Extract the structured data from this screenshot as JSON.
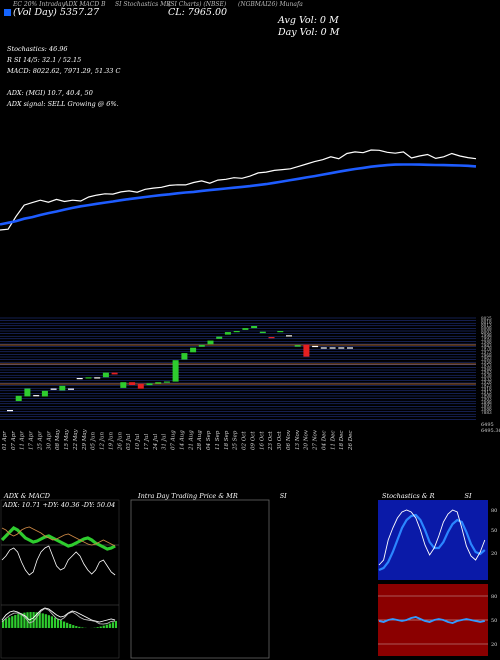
{
  "header": {
    "tab1": "EC 20% Intraday",
    "tab2": "ADX MACD B",
    "tab3": "SI Stochastics MR",
    "tab4": "(SI Charts) (NBSE)",
    "tab5": "(NGBMAI26) Munafa",
    "line2a": "(Vol",
    "line2b": "Day)",
    "line2c": "5357.27",
    "close_text": "CL: 7965.00",
    "avg_vol": "Avg Vol: 0   M",
    "day_vol": "Day Vol: 0   M"
  },
  "stats": [
    "Stochastics: 46.96",
    "R          SI 14/5: 32.1 / 52.15",
    "MACD: 8022.62, 7971.29, 51.33 C",
    "",
    "ADX:                  (MGI) 10.7, 40.4,  50",
    "ADX  signal: SELL Growing @ 6%."
  ],
  "colors": {
    "price_line": "#ffffff",
    "ma_line": "#1e5cff",
    "up_candle": "#2ecc2e",
    "down_candle": "#e32020",
    "bg": "#000000",
    "grid_blue": "#2a3f9e",
    "grid_orange": "#d27b2e",
    "rsi_panel": "#8b0000"
  },
  "chart_data": [
    {
      "type": "line",
      "title": "",
      "series": [
        {
          "values": [
            7535,
            7540,
            7620,
            7690,
            7705,
            7720,
            7708,
            7725,
            7712,
            7720,
            7715,
            7740,
            7752,
            7760,
            7758,
            7772,
            7778,
            7770,
            7788,
            7795,
            7800,
            7812,
            7816,
            7815,
            7830,
            7840,
            7826,
            7845,
            7850,
            7860,
            7856,
            7870,
            7890,
            7895,
            7905,
            7910,
            7915,
            7930,
            7945,
            7960,
            7972,
            7990,
            7978,
            8010,
            8020,
            8015,
            8032,
            8030,
            8018,
            8012,
            8020,
            7982,
            7995,
            8004,
            7980,
            7990,
            8010,
            7995,
            7985,
            7978
          ]
        },
        {
          "values": [
            7570,
            7580,
            7590,
            7605,
            7615,
            7628,
            7640,
            7650,
            7662,
            7672,
            7682,
            7690,
            7698,
            7705,
            7712,
            7720,
            7727,
            7733,
            7740,
            7746,
            7752,
            7757,
            7763,
            7768,
            7772,
            7778,
            7783,
            7788,
            7793,
            7798,
            7803,
            7808,
            7814,
            7820,
            7828,
            7836,
            7845,
            7853,
            7862,
            7870,
            7879,
            7888,
            7897,
            7906,
            7914,
            7921,
            7928,
            7934,
            7938,
            7941,
            7942,
            7942,
            7941,
            7940,
            7939,
            7938,
            7937,
            7936,
            7934,
            7930
          ]
        }
      ]
    },
    {
      "type": "bar",
      "title": "",
      "categories": [
        "01 Apr",
        "07 Apr",
        "11 Apr",
        "17 Apr",
        "25 Apr",
        "30 Apr",
        "08 May",
        "15 May",
        "22 May",
        "29 May",
        "05 Jun",
        "12 Jun",
        "19 Jun",
        "26 Jun",
        "03 Jul",
        "10 Jul",
        "17 Jul",
        "24 Jul",
        "31 Jul",
        "07 Aug",
        "14 Aug",
        "21 Aug",
        "28 Aug",
        "04 Sep",
        "11 Sep",
        "18 Sep",
        "25 Sep",
        "02 Oct",
        "09 Oct",
        "16 Oct",
        "23 Oct",
        "30 Oct",
        "06 Nov",
        "13 Nov",
        "20 Nov",
        "27 Nov",
        "04 Dec",
        "11 Dec",
        "18 Dec",
        "26 Dec"
      ],
      "series": [
        {
          "name": "open",
          "values": [
            7420,
            7445,
            7458,
            7462,
            7458,
            7480,
            7475,
            7480,
            7510,
            7510,
            7512,
            7512,
            7525,
            7482,
            7498,
            7494,
            7490,
            7494,
            7498,
            7500,
            7562,
            7582,
            7598,
            7605,
            7620,
            7632,
            7640,
            7645,
            7650,
            7636,
            7625,
            7640,
            7630,
            7598,
            7604,
            7600,
            7596,
            7596,
            7596,
            7596
          ]
        },
        {
          "name": "close",
          "values": [
            7420,
            7460,
            7480,
            7462,
            7474,
            7480,
            7488,
            7480,
            7510,
            7512,
            7512,
            7525,
            7520,
            7498,
            7490,
            7480,
            7495,
            7498,
            7500,
            7560,
            7580,
            7595,
            7603,
            7615,
            7626,
            7639,
            7642,
            7650,
            7656,
            7640,
            7622,
            7642,
            7630,
            7602,
            7570,
            7600,
            7596,
            7596,
            7596,
            7596
          ]
        }
      ]
    },
    {
      "type": "line",
      "title": "ADX & MACD",
      "series": []
    },
    {
      "type": "line",
      "title": "Intra Day Trading Price & MR",
      "series": []
    },
    {
      "type": "line",
      "title": "Stochastics & R",
      "series": []
    }
  ],
  "price_axis_labels": [
    "8025",
    "8018",
    "8013",
    "8008",
    "8003",
    "7998",
    "7993",
    "7988",
    "7983",
    "7978",
    "7973",
    "7968",
    "7963",
    "7958",
    "7953",
    "7948",
    "7943",
    "7938",
    "7933",
    "7928",
    "7923",
    "7918",
    "7913",
    "7908",
    "7903",
    "7898",
    "7893",
    "7888",
    "7883"
  ],
  "price_axis_bottom": [
    "6495",
    "6495.36"
  ],
  "panels": {
    "adx_title": "ADX  & MACD",
    "intra_title_a": "Intra  Day Trading Price  & MR",
    "intra_title_b": "SI",
    "stoch_title_a": "Stochastics & R",
    "stoch_title_b": "SI",
    "adx_label": "ADX: 10.71 +DY: 40.36  -DY: 50.04",
    "stoch_ticks": [
      "80",
      "50",
      "20"
    ],
    "rsi_ticks": [
      "80",
      "50",
      "20"
    ]
  }
}
